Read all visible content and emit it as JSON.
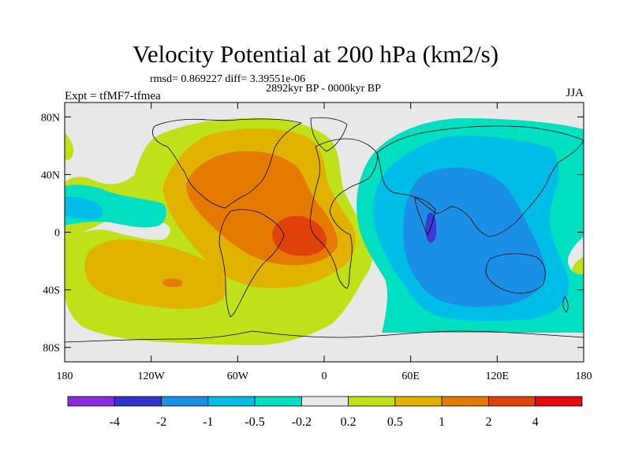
{
  "title": "Velocity Potential at 200 hPa (km2/s)",
  "stats": "rmsd= 0.869227 diff= 3.39551e-06",
  "period": "2892kyr BP - 0000kyr BP",
  "experiment": "Expt = tfMF7-tfmea",
  "season": "JJA",
  "map": {
    "lat_ticks": [
      {
        "label": "80N",
        "lat": 80
      },
      {
        "label": "40N",
        "lat": 40
      },
      {
        "label": "0",
        "lat": 0
      },
      {
        "label": "40S",
        "lat": -40
      },
      {
        "label": "80S",
        "lat": -80
      }
    ],
    "lon_ticks": [
      {
        "label": "180",
        "lon": -180
      },
      {
        "label": "120W",
        "lon": -120
      },
      {
        "label": "60W",
        "lon": -60
      },
      {
        "label": "0",
        "lon": 0
      },
      {
        "label": "60E",
        "lon": 60
      },
      {
        "label": "120E",
        "lon": 120
      },
      {
        "label": "180",
        "lon": 180
      }
    ],
    "colors": {
      "neutral": "#e8e8e8",
      "yellow_green": "#bfe11a",
      "gold": "#e1b300",
      "orange": "#e47a00",
      "red_orange": "#e0420a",
      "cyan": "#00dfc0",
      "light_blue": "#00bde8",
      "blue": "#1a8fe6",
      "dark_blue": "#3a3ad4"
    }
  },
  "colorbar": {
    "colors": [
      "#8a2be2",
      "#3333cc",
      "#1a8fe6",
      "#00bde8",
      "#00dfc0",
      "#e8e8e8",
      "#bfe11a",
      "#e1b300",
      "#e47a00",
      "#e0420a",
      "#e60a0a"
    ],
    "labels": [
      "-4",
      "-2",
      "-1",
      "-0.5",
      "-0.2",
      "0.2",
      "0.5",
      "1",
      "2",
      "4"
    ]
  }
}
